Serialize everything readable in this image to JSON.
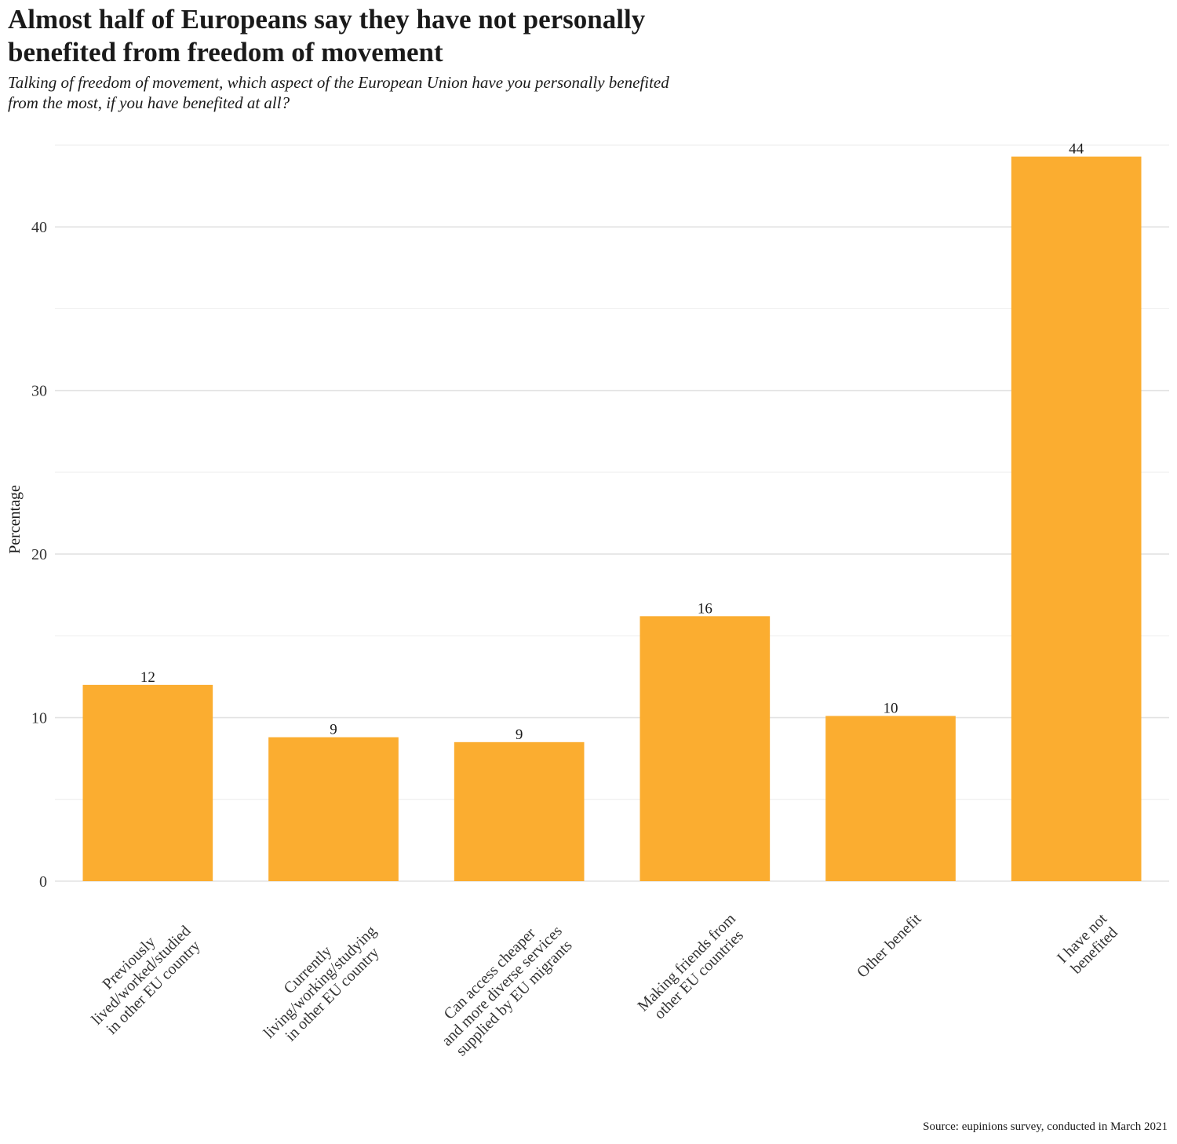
{
  "chart_data": {
    "type": "bar",
    "title": "Almost half of Europeans say they have not personally\n benefited from freedom of movement",
    "subtitle": "Talking of freedom of movement, which aspect of the European Union have you personally benefited\n from the most, if you have benefited at all?",
    "xlabel": "",
    "ylabel": "Percentage",
    "source": "Source: eupinions survey, conducted in March 2021",
    "categories": [
      [
        "Previously",
        "lived/worked/studied",
        "in other EU country"
      ],
      [
        "Currently",
        "living/working/studying",
        "in other EU country"
      ],
      [
        "Can access cheaper",
        "and more diverse services",
        "supplied by EU migrants"
      ],
      [
        "Making friends from",
        "other EU countries"
      ],
      [
        "Other benefit"
      ],
      [
        "I have not",
        "benefited"
      ]
    ],
    "values": [
      12.0,
      8.8,
      8.5,
      16.2,
      10.1,
      44.3
    ],
    "value_labels": [
      "12",
      "9",
      "9",
      "16",
      "10",
      "44"
    ],
    "ylim": [
      0,
      45
    ],
    "yticks": [
      0,
      10,
      20,
      30,
      40
    ],
    "ytick_labels": [
      "0",
      "10",
      "20",
      "30",
      "40"
    ],
    "grid": true,
    "legend": "none",
    "bar_color": "#FBAD30"
  }
}
